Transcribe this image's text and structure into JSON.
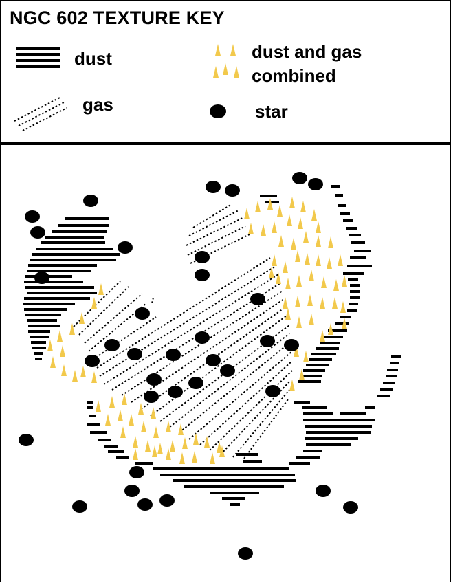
{
  "title": "NGC 602 TEXTURE KEY",
  "key": {
    "dust_label": "dust",
    "gas_label": "gas",
    "combined_label_line1": "dust and gas",
    "combined_label_line2": "combined",
    "star_label": "star"
  },
  "colors": {
    "ink": "#000000",
    "combined_yellow": "#f2c94c",
    "background": "#ffffff"
  },
  "icons": {
    "dust": "horizontal-line-pattern",
    "gas": "diagonal-dotted-line-pattern",
    "combined": "yellow-triangle-pattern",
    "star": "black-ellipse"
  }
}
